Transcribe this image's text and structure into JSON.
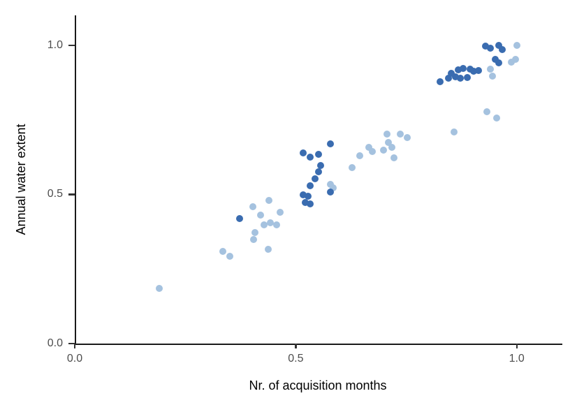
{
  "chart_data": {
    "type": "scatter",
    "title": "",
    "xlabel": "Nr. of acquisition months",
    "ylabel": "Annual water extent",
    "xlim": [
      0,
      1.1
    ],
    "ylim": [
      0,
      1.1
    ],
    "grid": false,
    "legend": "none",
    "x_ticks": {
      "values": [
        0,
        0.5,
        1.0
      ],
      "labels": [
        "0.0",
        "0.5",
        "1.0"
      ]
    },
    "y_ticks": {
      "values": [
        0,
        0.5,
        1.0
      ],
      "labels": [
        "0.0",
        "0.5",
        "1.0"
      ]
    },
    "colors": {
      "dark_blue": "#3A6CB0",
      "light_blue": "#A5C2DF",
      "axis_line": "#1a1a1a",
      "tick_label": "#4d4d4d"
    },
    "series": [
      {
        "name": "light_blue",
        "color": "#A5C2DF",
        "points": [
          [
            1.0,
            1.0
          ],
          [
            0.997,
            0.953
          ],
          [
            0.987,
            0.944
          ],
          [
            0.941,
            0.92
          ],
          [
            0.945,
            0.897
          ],
          [
            0.932,
            0.777
          ],
          [
            0.954,
            0.756
          ],
          [
            0.858,
            0.709
          ],
          [
            0.753,
            0.69
          ],
          [
            0.736,
            0.702
          ],
          [
            0.722,
            0.622
          ],
          [
            0.717,
            0.657
          ],
          [
            0.71,
            0.674
          ],
          [
            0.707,
            0.702
          ],
          [
            0.699,
            0.648
          ],
          [
            0.673,
            0.643
          ],
          [
            0.666,
            0.657
          ],
          [
            0.644,
            0.629
          ],
          [
            0.628,
            0.589
          ],
          [
            0.585,
            0.521
          ],
          [
            0.578,
            0.533
          ],
          [
            0.464,
            0.439
          ],
          [
            0.456,
            0.397
          ],
          [
            0.443,
            0.404
          ],
          [
            0.44,
            0.481
          ],
          [
            0.437,
            0.317
          ],
          [
            0.429,
            0.399
          ],
          [
            0.421,
            0.43
          ],
          [
            0.408,
            0.373
          ],
          [
            0.405,
            0.35
          ],
          [
            0.403,
            0.46
          ],
          [
            0.35,
            0.293
          ],
          [
            0.335,
            0.31
          ],
          [
            0.191,
            0.185
          ]
        ]
      },
      {
        "name": "dark_blue",
        "color": "#3A6CB0",
        "points": [
          [
            0.959,
            1.0
          ],
          [
            0.967,
            0.986
          ],
          [
            0.94,
            0.991
          ],
          [
            0.93,
            0.998
          ],
          [
            0.951,
            0.953
          ],
          [
            0.96,
            0.941
          ],
          [
            0.913,
            0.915
          ],
          [
            0.903,
            0.913
          ],
          [
            0.894,
            0.92
          ],
          [
            0.888,
            0.892
          ],
          [
            0.878,
            0.923
          ],
          [
            0.873,
            0.89
          ],
          [
            0.867,
            0.918
          ],
          [
            0.862,
            0.894
          ],
          [
            0.851,
            0.906
          ],
          [
            0.845,
            0.89
          ],
          [
            0.826,
            0.878
          ],
          [
            0.579,
            0.509
          ],
          [
            0.578,
            0.669
          ],
          [
            0.557,
            0.596
          ],
          [
            0.551,
            0.634
          ],
          [
            0.551,
            0.575
          ],
          [
            0.543,
            0.552
          ],
          [
            0.533,
            0.469
          ],
          [
            0.532,
            0.624
          ],
          [
            0.532,
            0.528
          ],
          [
            0.528,
            0.493
          ],
          [
            0.521,
            0.472
          ],
          [
            0.516,
            0.638
          ],
          [
            0.516,
            0.498
          ],
          [
            0.373,
            0.418
          ]
        ]
      }
    ]
  }
}
